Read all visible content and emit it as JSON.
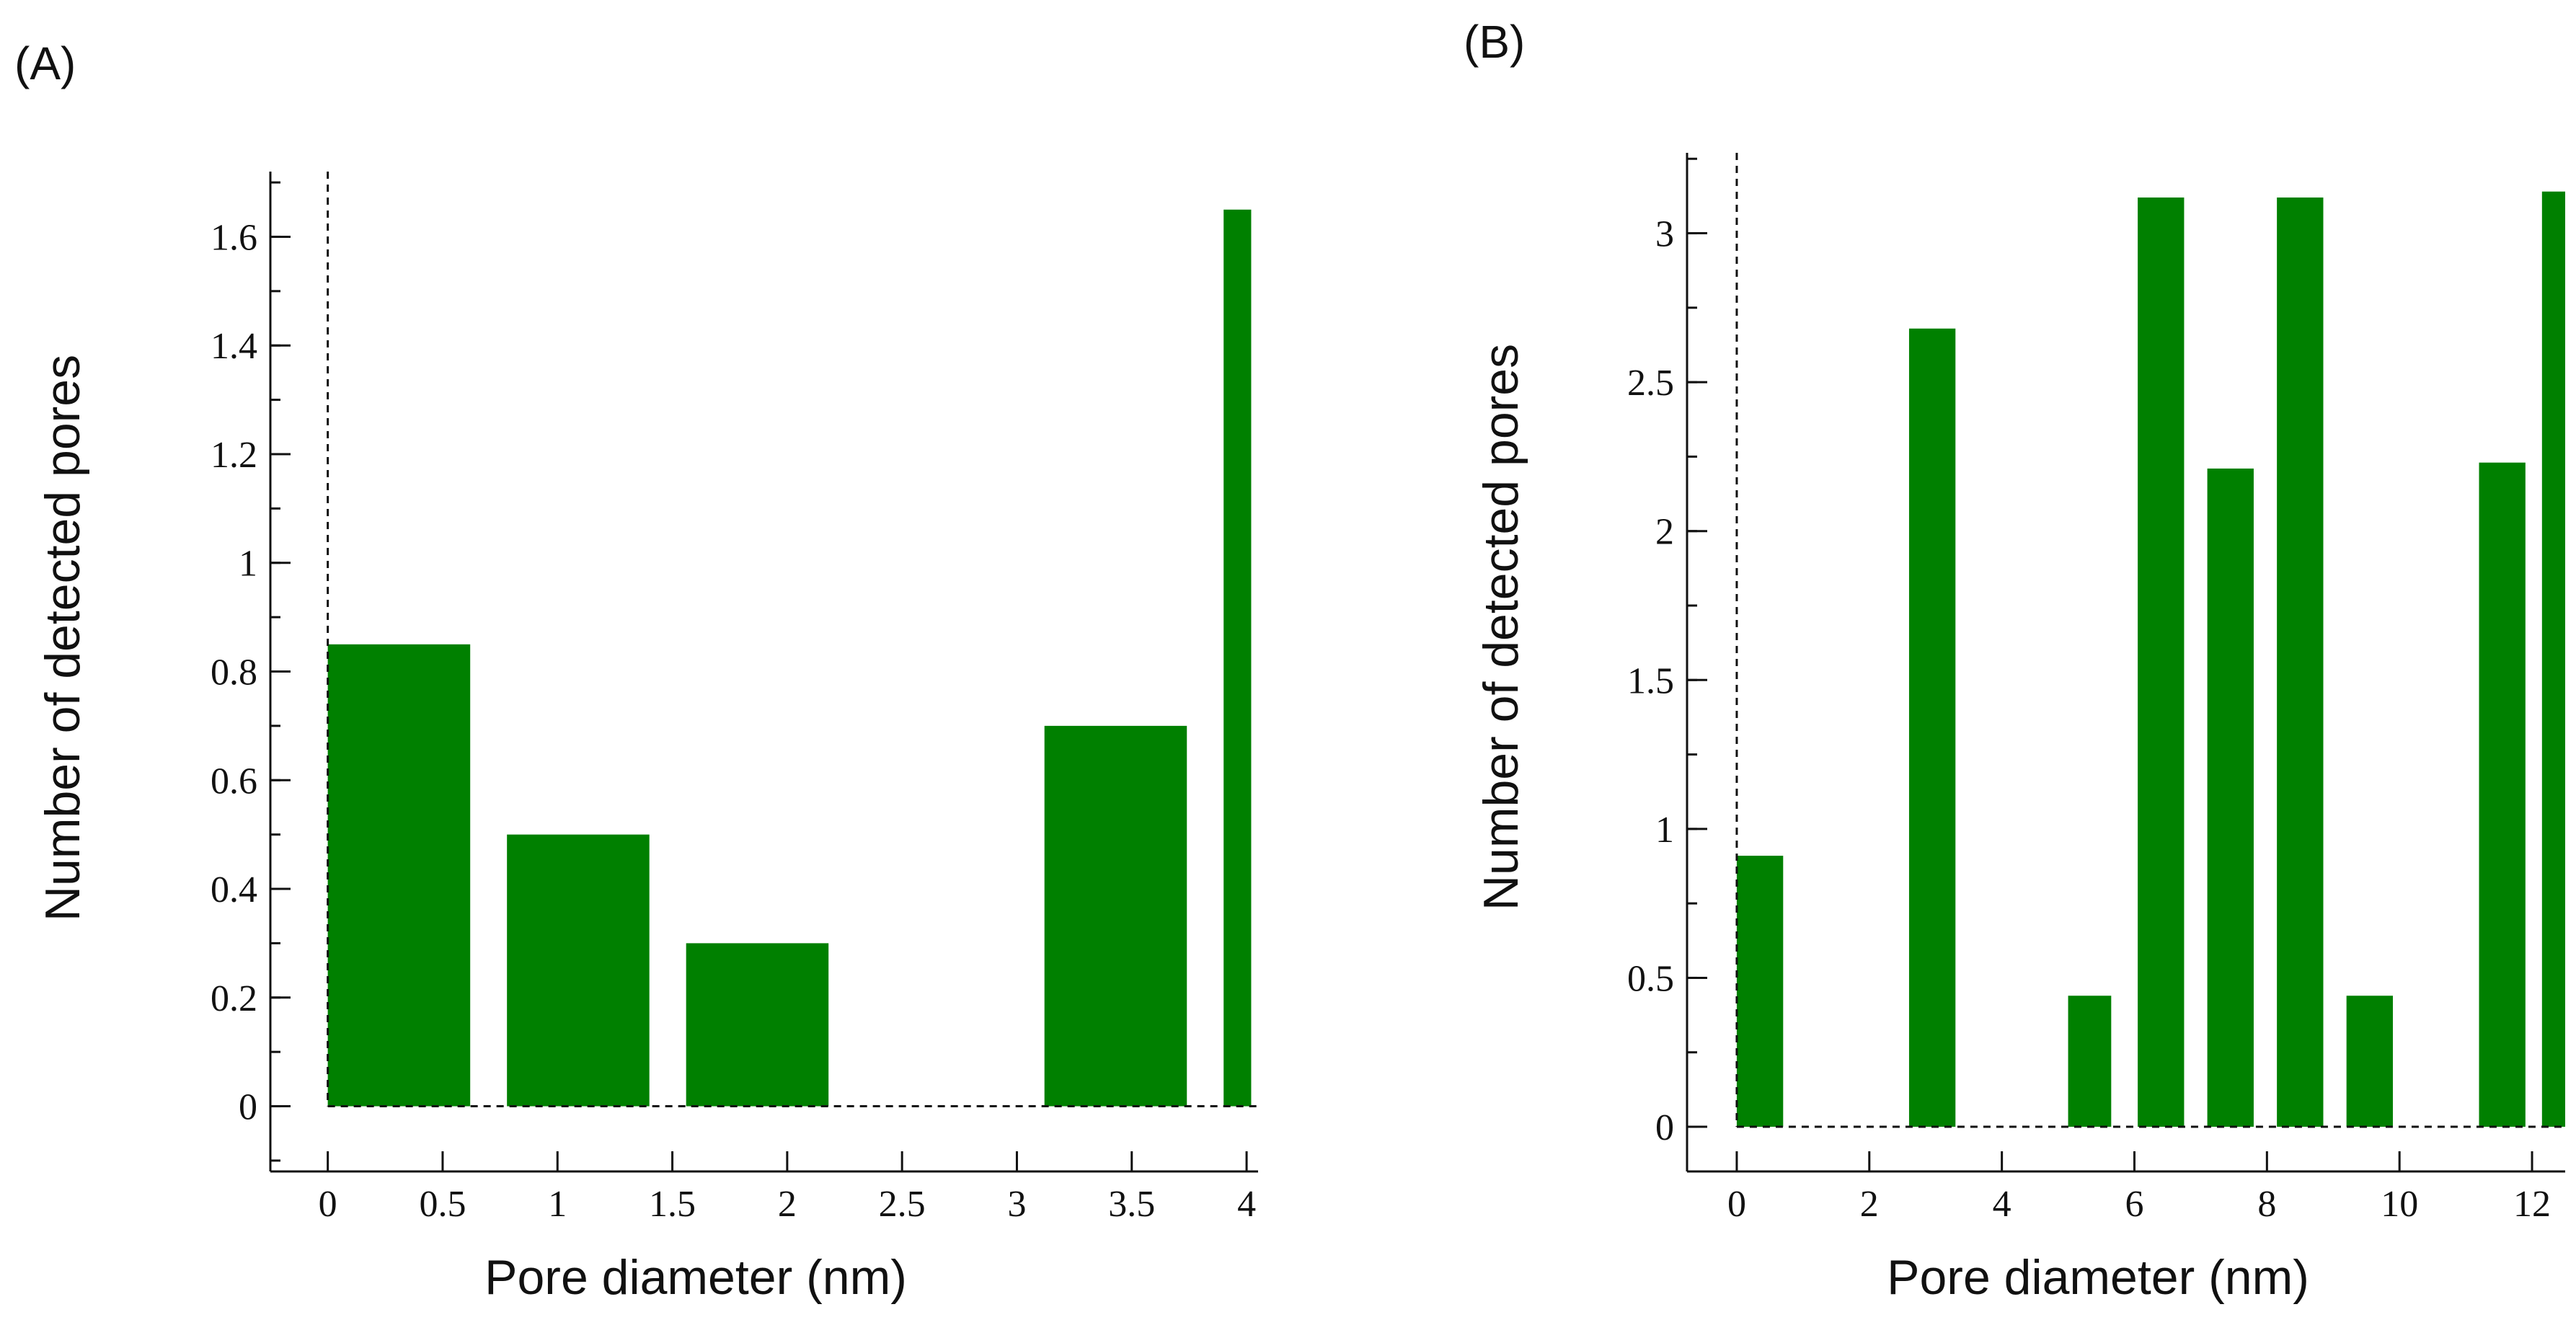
{
  "chart_data": [
    {
      "panel": "(A)",
      "type": "bar",
      "xlabel": "Pore diameter (nm)",
      "ylabel": "Number of detected pores",
      "xlim": [
        -0.25,
        4.05
      ],
      "ylim": [
        -0.12,
        1.72
      ],
      "x_ticks": [
        {
          "v": 0,
          "label": "0"
        },
        {
          "v": 0.5,
          "label": "0.5"
        },
        {
          "v": 1,
          "label": "1"
        },
        {
          "v": 1.5,
          "label": "1.5"
        },
        {
          "v": 2,
          "label": "2"
        },
        {
          "v": 2.5,
          "label": "2.5"
        },
        {
          "v": 3,
          "label": "3"
        },
        {
          "v": 3.5,
          "label": "3.5"
        },
        {
          "v": 4,
          "label": "4"
        }
      ],
      "y_ticks": [
        {
          "v": 0,
          "label": "0"
        },
        {
          "v": 0.2,
          "label": "0.2"
        },
        {
          "v": 0.4,
          "label": "0.4"
        },
        {
          "v": 0.6,
          "label": "0.6"
        },
        {
          "v": 0.8,
          "label": "0.8"
        },
        {
          "v": 1,
          "label": "1"
        },
        {
          "v": 1.2,
          "label": "1.2"
        },
        {
          "v": 1.4,
          "label": "1.4"
        },
        {
          "v": 1.6,
          "label": "1.6"
        }
      ],
      "y_minor_step": 0.1,
      "bars": [
        {
          "x0": 0.0,
          "x1": 0.62,
          "value": 0.85
        },
        {
          "x0": 0.78,
          "x1": 1.4,
          "value": 0.5
        },
        {
          "x0": 1.56,
          "x1": 2.18,
          "value": 0.3
        },
        {
          "x0": 3.12,
          "x1": 3.74,
          "value": 0.7
        },
        {
          "x0": 3.9,
          "x1": 4.02,
          "value": 1.65
        }
      ]
    },
    {
      "panel": "(B)",
      "type": "bar",
      "xlabel": "Pore diameter (nm)",
      "ylabel": "Number of detected pores",
      "xlim": [
        -0.75,
        12.5
      ],
      "ylim": [
        -0.15,
        3.27
      ],
      "x_ticks": [
        {
          "v": 0,
          "label": "0"
        },
        {
          "v": 2,
          "label": "2"
        },
        {
          "v": 4,
          "label": "4"
        },
        {
          "v": 6,
          "label": "6"
        },
        {
          "v": 8,
          "label": "8"
        },
        {
          "v": 10,
          "label": "10"
        },
        {
          "v": 12,
          "label": "12"
        }
      ],
      "y_ticks": [
        {
          "v": 0,
          "label": "0"
        },
        {
          "v": 0.5,
          "label": "0.5"
        },
        {
          "v": 1,
          "label": "1"
        },
        {
          "v": 1.5,
          "label": "1.5"
        },
        {
          "v": 2,
          "label": "2"
        },
        {
          "v": 2.5,
          "label": "2.5"
        },
        {
          "v": 3,
          "label": "3"
        }
      ],
      "y_minor_step": 0.25,
      "bars": [
        {
          "x0": 0.0,
          "x1": 0.7,
          "value": 0.91
        },
        {
          "x0": 2.6,
          "x1": 3.3,
          "value": 2.68
        },
        {
          "x0": 5.0,
          "x1": 5.65,
          "value": 0.44
        },
        {
          "x0": 6.05,
          "x1": 6.75,
          "value": 3.12
        },
        {
          "x0": 7.1,
          "x1": 7.8,
          "value": 2.21
        },
        {
          "x0": 8.15,
          "x1": 8.85,
          "value": 3.12
        },
        {
          "x0": 9.2,
          "x1": 9.9,
          "value": 0.44
        },
        {
          "x0": 11.2,
          "x1": 11.9,
          "value": 2.23
        },
        {
          "x0": 12.15,
          "x1": 12.5,
          "value": 3.14
        }
      ]
    }
  ]
}
